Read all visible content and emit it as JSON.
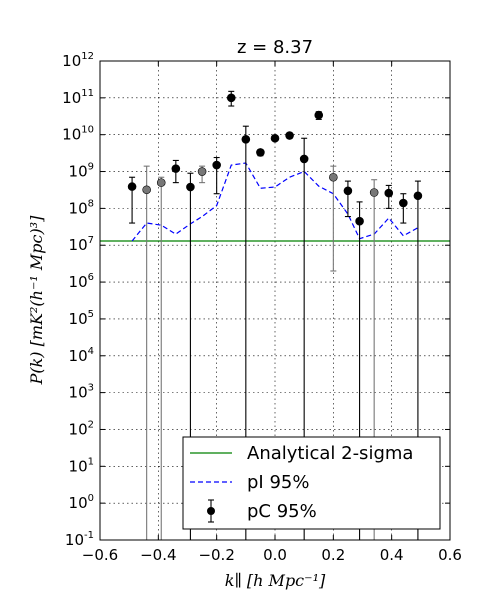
{
  "chart_data": {
    "type": "scatter",
    "title": "z = 8.37",
    "xlabel": "k∥ [h Mpc⁻¹]",
    "ylabel": "P(k) [mK²(h⁻¹ Mpc)³]",
    "xlim": [
      -0.6,
      0.6
    ],
    "ylim_log10": [
      -1,
      12
    ],
    "yscale": "log",
    "grid": true,
    "xticks": [
      "−0.6",
      "−0.4",
      "−0.2",
      "0.0",
      "0.2",
      "0.4",
      "0.6"
    ],
    "yticks": [
      {
        "base": "10",
        "exp": "12"
      },
      {
        "base": "10",
        "exp": "11"
      },
      {
        "base": "10",
        "exp": "10"
      },
      {
        "base": "10",
        "exp": "9"
      },
      {
        "base": "10",
        "exp": "8"
      },
      {
        "base": "10",
        "exp": "7"
      },
      {
        "base": "10",
        "exp": "6"
      },
      {
        "base": "10",
        "exp": "5"
      },
      {
        "base": "10",
        "exp": "4"
      },
      {
        "base": "10",
        "exp": "3"
      },
      {
        "base": "10",
        "exp": "2"
      },
      {
        "base": "10",
        "exp": "1"
      },
      {
        "base": "10",
        "exp": "0"
      },
      {
        "base": "10",
        "exp": "-1"
      }
    ],
    "legend_position": "bottom-right",
    "legend": [
      {
        "label": "Analytical 2-sigma",
        "style": "line",
        "color": "#008000"
      },
      {
        "label": "pI 95%",
        "style": "dashed",
        "color": "#0000ff"
      },
      {
        "label": "pC 95%",
        "style": "errorbar",
        "color": "#000000"
      }
    ],
    "analytical_2sigma": {
      "name": "Analytical 2-sigma",
      "value": 13000000.0,
      "color": "#008000"
    },
    "pI_95": {
      "name": "pI 95%",
      "color": "#0000ff",
      "x": [
        -0.49,
        -0.44,
        -0.39,
        -0.34,
        -0.29,
        -0.25,
        -0.2,
        -0.15,
        -0.1,
        -0.05,
        0.0,
        0.05,
        0.1,
        0.15,
        0.2,
        0.25,
        0.29,
        0.34,
        0.39,
        0.44,
        0.49
      ],
      "y": [
        13000000.0,
        40000000.0,
        35000000.0,
        20000000.0,
        38000000.0,
        60000000.0,
        120000000.0,
        1500000000.0,
        1700000000.0,
        350000000.0,
        380000000.0,
        700000000.0,
        1000000000.0,
        400000000.0,
        250000000.0,
        70000000.0,
        15000000.0,
        20000000.0,
        55000000.0,
        18000000.0,
        30000000.0
      ]
    },
    "pC_95": {
      "name": "pC 95%",
      "points": [
        {
          "x": -0.49,
          "y": 390000000.0,
          "lo": 40000000.0,
          "hi": 700000000.0,
          "color": "#000000"
        },
        {
          "x": -0.44,
          "y": 320000000.0,
          "lo": 0.001,
          "hi": 1400000000.0,
          "color": "#777777"
        },
        {
          "x": -0.39,
          "y": 500000000.0,
          "lo": 0.001,
          "hi": 700000000.0,
          "color": "#777777"
        },
        {
          "x": -0.34,
          "y": 1200000000.0,
          "lo": 500000000.0,
          "hi": 2000000000.0,
          "color": "#000000"
        },
        {
          "x": -0.29,
          "y": 380000000.0,
          "lo": 0.001,
          "hi": 900000000.0,
          "color": "#000000"
        },
        {
          "x": -0.25,
          "y": 1000000000.0,
          "lo": 500000000.0,
          "hi": 1400000000.0,
          "color": "#777777"
        },
        {
          "x": -0.2,
          "y": 1500000000.0,
          "lo": 250000000.0,
          "hi": 2400000000.0,
          "color": "#000000"
        },
        {
          "x": -0.15,
          "y": 100000000000.0,
          "lo": 60000000000.0,
          "hi": 150000000000.0,
          "color": "#000000"
        },
        {
          "x": -0.1,
          "y": 7500000000.0,
          "lo": 0.001,
          "hi": 17000000000.0,
          "color": "#000000"
        },
        {
          "x": -0.05,
          "y": 3300000000.0,
          "lo": 2700000000.0,
          "hi": 3900000000.0,
          "color": "#000000"
        },
        {
          "x": 0.0,
          "y": 8000000000.0,
          "lo": 7000000000.0,
          "hi": 9000000000.0,
          "color": "#000000"
        },
        {
          "x": 0.05,
          "y": 9500000000.0,
          "lo": 8000000000.0,
          "hi": 11000000000.0,
          "color": "#000000"
        },
        {
          "x": 0.1,
          "y": 2200000000.0,
          "lo": 0.001,
          "hi": 8000000000.0,
          "color": "#000000"
        },
        {
          "x": 0.15,
          "y": 34000000000.0,
          "lo": 26000000000.0,
          "hi": 42000000000.0,
          "color": "#000000"
        },
        {
          "x": 0.2,
          "y": 700000000.0,
          "lo": 2000000.0,
          "hi": 1400000000.0,
          "color": "#777777"
        },
        {
          "x": 0.25,
          "y": 300000000.0,
          "lo": 60000000.0,
          "hi": 550000000.0,
          "color": "#000000"
        },
        {
          "x": 0.29,
          "y": 45000000.0,
          "lo": 0.001,
          "hi": 150000000.0,
          "color": "#000000"
        },
        {
          "x": 0.34,
          "y": 270000000.0,
          "lo": 0.001,
          "hi": 600000000.0,
          "color": "#777777"
        },
        {
          "x": 0.39,
          "y": 260000000.0,
          "lo": 100000000.0,
          "hi": 420000000.0,
          "color": "#000000"
        },
        {
          "x": 0.44,
          "y": 140000000.0,
          "lo": 40000000.0,
          "hi": 250000000.0,
          "color": "#000000"
        },
        {
          "x": 0.49,
          "y": 220000000.0,
          "lo": 0.001,
          "hi": 550000000.0,
          "color": "#000000"
        }
      ]
    }
  }
}
